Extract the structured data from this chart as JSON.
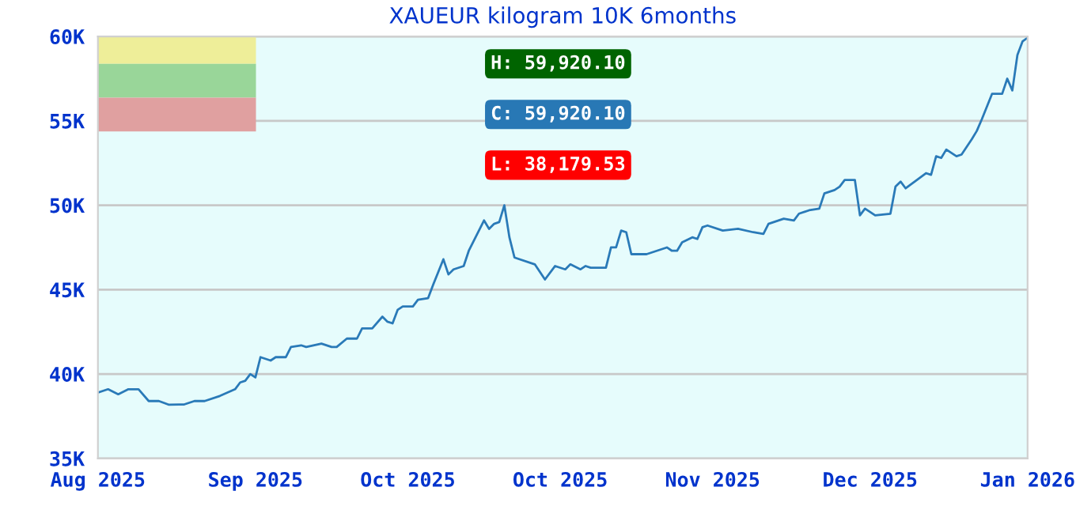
{
  "chart_data": {
    "type": "line",
    "title": "XAUEUR kilogram 10K 6months",
    "x": [
      "2025-08-01",
      "2025-08-03",
      "2025-08-05",
      "2025-08-07",
      "2025-08-09",
      "2025-08-11",
      "2025-08-13",
      "2025-08-15",
      "2025-08-17",
      "2025-08-18",
      "2025-08-20",
      "2025-08-22",
      "2025-08-25",
      "2025-08-28",
      "2025-08-29",
      "2025-08-30",
      "2025-08-31",
      "2025-09-01",
      "2025-09-02",
      "2025-09-04",
      "2025-09-05",
      "2025-09-07",
      "2025-09-08",
      "2025-09-10",
      "2025-09-11",
      "2025-09-14",
      "2025-09-16",
      "2025-09-17",
      "2025-09-19",
      "2025-09-21",
      "2025-09-22",
      "2025-09-24",
      "2025-09-26",
      "2025-09-27",
      "2025-09-28",
      "2025-09-29",
      "2025-09-30",
      "2025-10-02",
      "2025-10-03",
      "2025-10-05",
      "2025-10-06",
      "2025-10-08",
      "2025-10-09",
      "2025-10-10",
      "2025-10-12",
      "2025-10-13",
      "2025-10-16",
      "2025-10-17",
      "2025-10-18",
      "2025-10-19",
      "2025-10-20",
      "2025-10-21",
      "2025-10-22",
      "2025-10-26",
      "2025-10-28",
      "2025-10-30",
      "2025-11-01",
      "2025-11-02",
      "2025-11-04",
      "2025-11-05",
      "2025-11-06",
      "2025-11-09",
      "2025-11-10",
      "2025-11-11",
      "2025-11-12",
      "2025-11-13",
      "2025-11-14",
      "2025-11-17",
      "2025-11-19",
      "2025-11-21",
      "2025-11-22",
      "2025-11-23",
      "2025-11-24",
      "2025-11-26",
      "2025-11-27",
      "2025-11-28",
      "2025-11-29",
      "2025-12-02",
      "2025-12-05",
      "2025-12-08",
      "2025-12-10",
      "2025-12-11",
      "2025-12-14",
      "2025-12-16",
      "2025-12-17",
      "2025-12-19",
      "2025-12-21",
      "2025-12-22",
      "2025-12-24",
      "2025-12-25",
      "2025-12-26",
      "2025-12-28",
      "2025-12-29",
      "2025-12-30",
      "2026-01-01",
      "2026-01-04",
      "2026-01-05",
      "2026-01-06",
      "2026-01-07",
      "2026-01-11",
      "2026-01-12",
      "2026-01-13",
      "2026-01-14",
      "2026-01-15",
      "2026-01-17",
      "2026-01-18",
      "2026-01-20",
      "2026-01-21",
      "2026-01-22",
      "2026-01-24",
      "2026-01-26",
      "2026-01-27",
      "2026-01-28",
      "2026-01-29",
      "2026-01-30",
      "2026-01-31"
    ],
    "series": [
      {
        "color": "#2a7ab8",
        "values": [
          38900,
          39100,
          38800,
          39100,
          39100,
          38400,
          38400,
          38179.53,
          38200,
          38200,
          38400,
          38400,
          38700,
          39100,
          39500,
          39600,
          40000,
          39800,
          41000,
          40800,
          41000,
          41000,
          41600,
          41700,
          41600,
          41800,
          41600,
          41600,
          42100,
          42100,
          42700,
          42700,
          43400,
          43100,
          43000,
          43800,
          44000,
          44000,
          44400,
          44500,
          45300,
          46800,
          45900,
          46200,
          46400,
          47300,
          49100,
          48600,
          48900,
          49000,
          50000,
          48100,
          46900,
          46500,
          45600,
          46400,
          46200,
          46500,
          46200,
          46400,
          46300,
          46300,
          47500,
          47500,
          48500,
          48400,
          47100,
          47100,
          47300,
          47500,
          47300,
          47300,
          47800,
          48100,
          48000,
          48700,
          48800,
          48500,
          48600,
          48400,
          48300,
          48900,
          49200,
          49100,
          49500,
          49700,
          49800,
          50700,
          50900,
          51100,
          51500,
          51500,
          49400,
          49800,
          49400,
          49500,
          51100,
          51400,
          51000,
          51900,
          51800,
          52900,
          52800,
          53300,
          52900,
          53000,
          53900,
          54400,
          55100,
          56600,
          56600,
          57500,
          56800,
          58900,
          59700,
          59920.1
        ]
      }
    ],
    "xlim": [
      "2025-08-01",
      "2026-01-31"
    ],
    "xticks": [
      {
        "value": "2025-08-01",
        "label": "Aug 2025"
      },
      {
        "value": "2025-09-01",
        "label": "Sep 2025"
      },
      {
        "value": "2025-10-01",
        "label": "Oct 2025"
      },
      {
        "value": "2025-10-31",
        "label": "Oct 2025"
      },
      {
        "value": "2025-11-30",
        "label": "Nov 2025"
      },
      {
        "value": "2025-12-31",
        "label": "Dec 2025"
      },
      {
        "value": "2026-01-31",
        "label": "Jan 2026"
      }
    ],
    "ylim": [
      35000,
      60000
    ],
    "yticks": [
      {
        "value": 35000,
        "label": "35K"
      },
      {
        "value": 40000,
        "label": "40K"
      },
      {
        "value": 45000,
        "label": "45K"
      },
      {
        "value": 50000,
        "label": "50K"
      },
      {
        "value": 55000,
        "label": "55K"
      },
      {
        "value": 60000,
        "label": "60K"
      }
    ],
    "grid": "y",
    "line_style": "solid",
    "marker": "none",
    "annotations": [
      "H: 59,920.10",
      "C: 59,920.10",
      "L: 38,179.53"
    ]
  }
}
